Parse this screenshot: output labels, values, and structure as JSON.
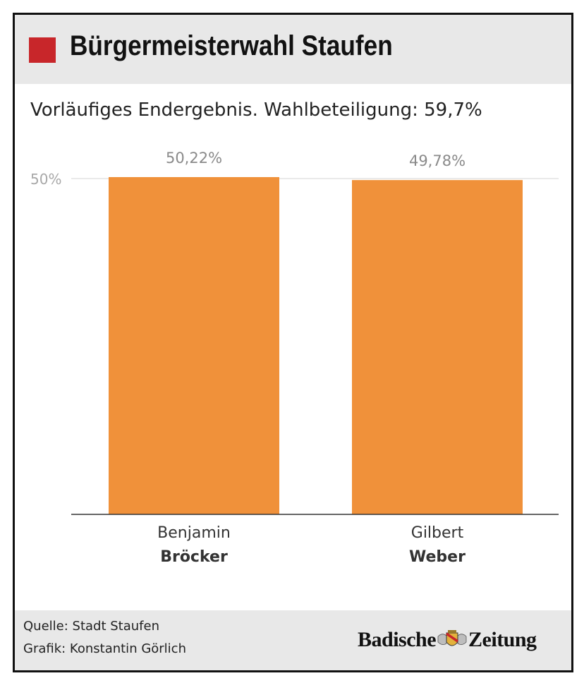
{
  "header": {
    "title": "Bürgermeisterwahl Staufen",
    "accent_color": "#c8262a"
  },
  "subtitle": "Vorläufiges Endergebnis. Wahlbeteiligung: 59,7%",
  "chart_data": {
    "type": "bar",
    "categories": [
      "Benjamin Bröcker",
      "Gilbert Weber"
    ],
    "category_lines": [
      {
        "first": "Benjamin",
        "last": "Bröcker"
      },
      {
        "first": "Gilbert",
        "last": "Weber"
      }
    ],
    "values": [
      50.22,
      49.78
    ],
    "value_labels": [
      "50,22%",
      "49,78%"
    ],
    "y_ticks": [
      {
        "value": 50,
        "label": "50%"
      }
    ],
    "ylim": [
      0,
      50.22
    ],
    "grid": true,
    "bar_color": "#f0913a",
    "title": "",
    "xlabel": "",
    "ylabel": ""
  },
  "footer": {
    "source": "Quelle: Stadt Staufen",
    "credit": "Grafik: Konstantin Görlich",
    "logo_left": "Badische",
    "logo_right": "Zeitung",
    "logo_icon": "coat-of-arms-icon"
  }
}
